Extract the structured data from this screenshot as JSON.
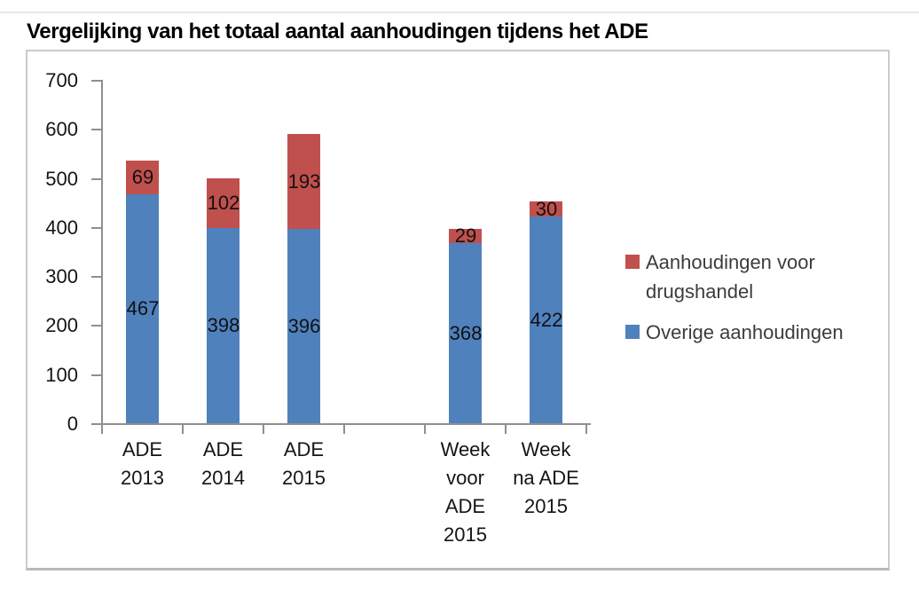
{
  "title": "Vergelijking van het totaal aantal aanhoudingen tijdens het ADE",
  "chart_data": {
    "type": "bar",
    "stacked": true,
    "title": "Vergelijking van het totaal aantal aanhoudingen tijdens het ADE",
    "categories": [
      "ADE\n2013",
      "ADE\n2014",
      "ADE\n2015",
      "",
      "Week\nvoor\nADE\n2015",
      "Week\nna ADE\n2015"
    ],
    "series": [
      {
        "name": "Overige aanhoudingen",
        "color": "#4F81BD",
        "values": [
          467,
          398,
          396,
          null,
          368,
          422
        ]
      },
      {
        "name": "Aanhoudingen voor drugshandel",
        "color": "#C0504D",
        "values": [
          69,
          102,
          193,
          null,
          29,
          30
        ]
      }
    ],
    "totals": [
      536,
      500,
      589,
      null,
      397,
      452
    ],
    "xlabel": "",
    "ylabel": "",
    "ylim": [
      0,
      700
    ],
    "yticks": [
      0,
      100,
      200,
      300,
      400,
      500,
      600,
      700
    ],
    "grid": false,
    "data_labels": true,
    "legend_position": "right",
    "legend": [
      {
        "label": "Aanhoudingen voor\ndrugshandel",
        "color": "#C0504D"
      },
      {
        "label": "Overige aanhoudingen",
        "color": "#4F81BD"
      }
    ]
  },
  "colors": {
    "bar_blue": "#4F81BD",
    "bar_red": "#C0504D",
    "axis_gray": "#8f8f8f",
    "frame_border": "#cbcbcb",
    "text": "#151515",
    "legend_text": "#3c3c3c",
    "background": "#ffffff"
  }
}
